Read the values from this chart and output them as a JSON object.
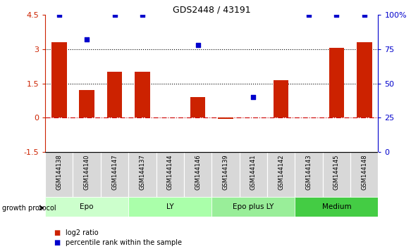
{
  "title": "GDS2448 / 43191",
  "samples": [
    "GSM144138",
    "GSM144140",
    "GSM144147",
    "GSM144137",
    "GSM144144",
    "GSM144146",
    "GSM144139",
    "GSM144141",
    "GSM144142",
    "GSM144143",
    "GSM144145",
    "GSM144148"
  ],
  "log2_ratio_all": [
    3.3,
    1.2,
    2.0,
    2.0,
    null,
    0.9,
    -0.05,
    null,
    1.65,
    null,
    3.05,
    3.3
  ],
  "percentile": [
    100,
    82,
    100,
    100,
    null,
    78,
    null,
    40,
    null,
    100,
    100,
    100
  ],
  "ylim_left": [
    -1.5,
    4.5
  ],
  "ylim_right": [
    0,
    100
  ],
  "yticks_left": [
    -1.5,
    0,
    1.5,
    3.0,
    4.5
  ],
  "ytick_labels_left": [
    "-1.5",
    "0",
    "1.5",
    "3",
    "4.5"
  ],
  "yticks_right": [
    0,
    25,
    50,
    75,
    100
  ],
  "ytick_labels_right": [
    "0",
    "25",
    "50",
    "75",
    "100%"
  ],
  "hlines": [
    0,
    1.5,
    3.0
  ],
  "hline_styles": [
    "dashdot",
    "dotted",
    "dotted"
  ],
  "hline_colors": [
    "#cc0000",
    "#000000",
    "#000000"
  ],
  "bar_color": "#cc2200",
  "dot_color": "#0000cc",
  "groups": [
    {
      "label": "Epo",
      "start": 0,
      "end": 3,
      "color": "#ccffcc"
    },
    {
      "label": "LY",
      "start": 3,
      "end": 6,
      "color": "#aaffaa"
    },
    {
      "label": "Epo plus LY",
      "start": 6,
      "end": 9,
      "color": "#99ee99"
    },
    {
      "label": "Medium",
      "start": 9,
      "end": 12,
      "color": "#44cc44"
    }
  ],
  "legend_items": [
    {
      "label": "log2 ratio",
      "color": "#cc2200"
    },
    {
      "label": "percentile rank within the sample",
      "color": "#0000cc"
    }
  ],
  "growth_protocol_label": "growth protocol",
  "bar_width": 0.55
}
